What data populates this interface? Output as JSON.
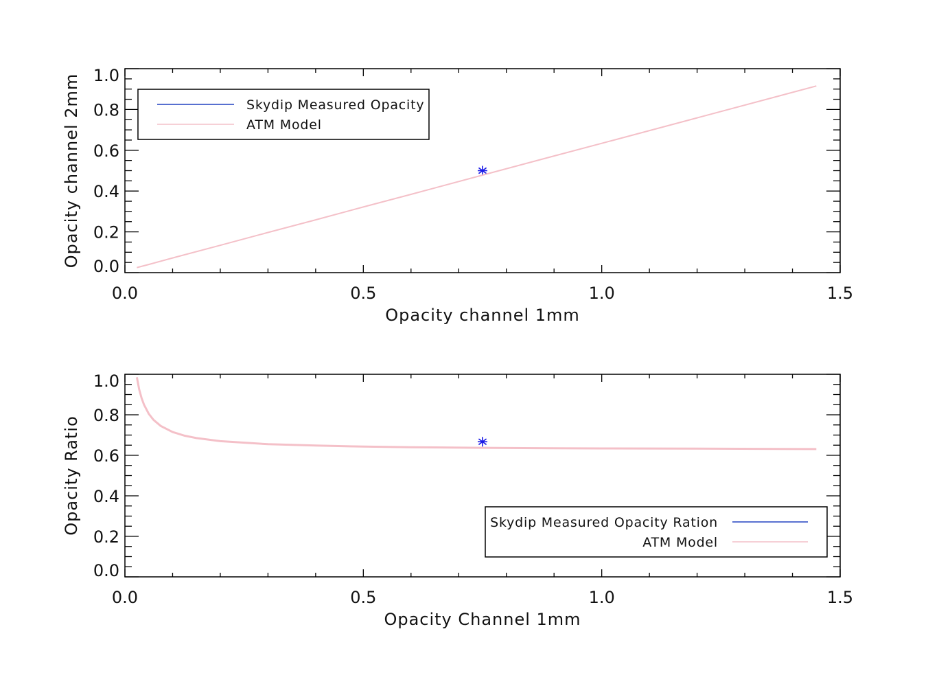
{
  "colors": {
    "measured": "#2040c0",
    "marker": "#1a1ae6",
    "model": "#f4c0c8",
    "axis": "#000000"
  },
  "chart_data": [
    {
      "type": "line",
      "xlabel": "Opacity channel 1mm",
      "ylabel": "Opacity channel 2mm",
      "xlim": [
        0,
        1.5
      ],
      "ylim": [
        0,
        1.0
      ],
      "xticks": [
        "0.0",
        "0.5",
        "1.0",
        "1.5"
      ],
      "yticks": [
        "0.0",
        "0.2",
        "0.4",
        "0.6",
        "0.8",
        "1.0"
      ],
      "legend_position": "top-left",
      "legend": [
        "Skydip Measured Opacity",
        "ATM Model"
      ],
      "series": [
        {
          "name": "Skydip Measured Opacity",
          "style": "marker-asterisk",
          "x": [
            0.75
          ],
          "y": [
            0.5
          ]
        },
        {
          "name": "ATM Model",
          "style": "line",
          "x": [
            0.025,
            0.05,
            0.1,
            0.2,
            0.3,
            0.4,
            0.5,
            0.6,
            0.75,
            0.9,
            1.0,
            1.2,
            1.45
          ],
          "y": [
            0.025,
            0.04,
            0.072,
            0.134,
            0.197,
            0.259,
            0.322,
            0.384,
            0.478,
            0.572,
            0.634,
            0.759,
            0.915
          ]
        }
      ]
    },
    {
      "type": "line",
      "xlabel": "Opacity Channel 1mm",
      "ylabel": "Opacity Ratio",
      "xlim": [
        0,
        1.5
      ],
      "ylim": [
        0,
        1.0
      ],
      "xticks": [
        "0.0",
        "0.5",
        "1.0",
        "1.5"
      ],
      "yticks": [
        "0.0",
        "0.2",
        "0.4",
        "0.6",
        "0.8",
        "1.0"
      ],
      "legend_position": "bottom-right",
      "legend": [
        "Skydip Measured Opacity Ration",
        "ATM Model"
      ],
      "series": [
        {
          "name": "Skydip Measured Opacity Ration",
          "style": "marker-asterisk",
          "x": [
            0.75
          ],
          "y": [
            0.667
          ]
        },
        {
          "name": "ATM Model",
          "style": "line",
          "x": [
            0.025,
            0.03,
            0.035,
            0.04,
            0.05,
            0.06,
            0.075,
            0.1,
            0.125,
            0.15,
            0.2,
            0.3,
            0.4,
            0.5,
            0.6,
            0.75,
            0.9,
            1.0,
            1.2,
            1.45
          ],
          "y": [
            0.985,
            0.925,
            0.882,
            0.85,
            0.805,
            0.775,
            0.745,
            0.715,
            0.697,
            0.685,
            0.67,
            0.655,
            0.648,
            0.643,
            0.64,
            0.637,
            0.635,
            0.634,
            0.633,
            0.631
          ]
        }
      ]
    }
  ]
}
